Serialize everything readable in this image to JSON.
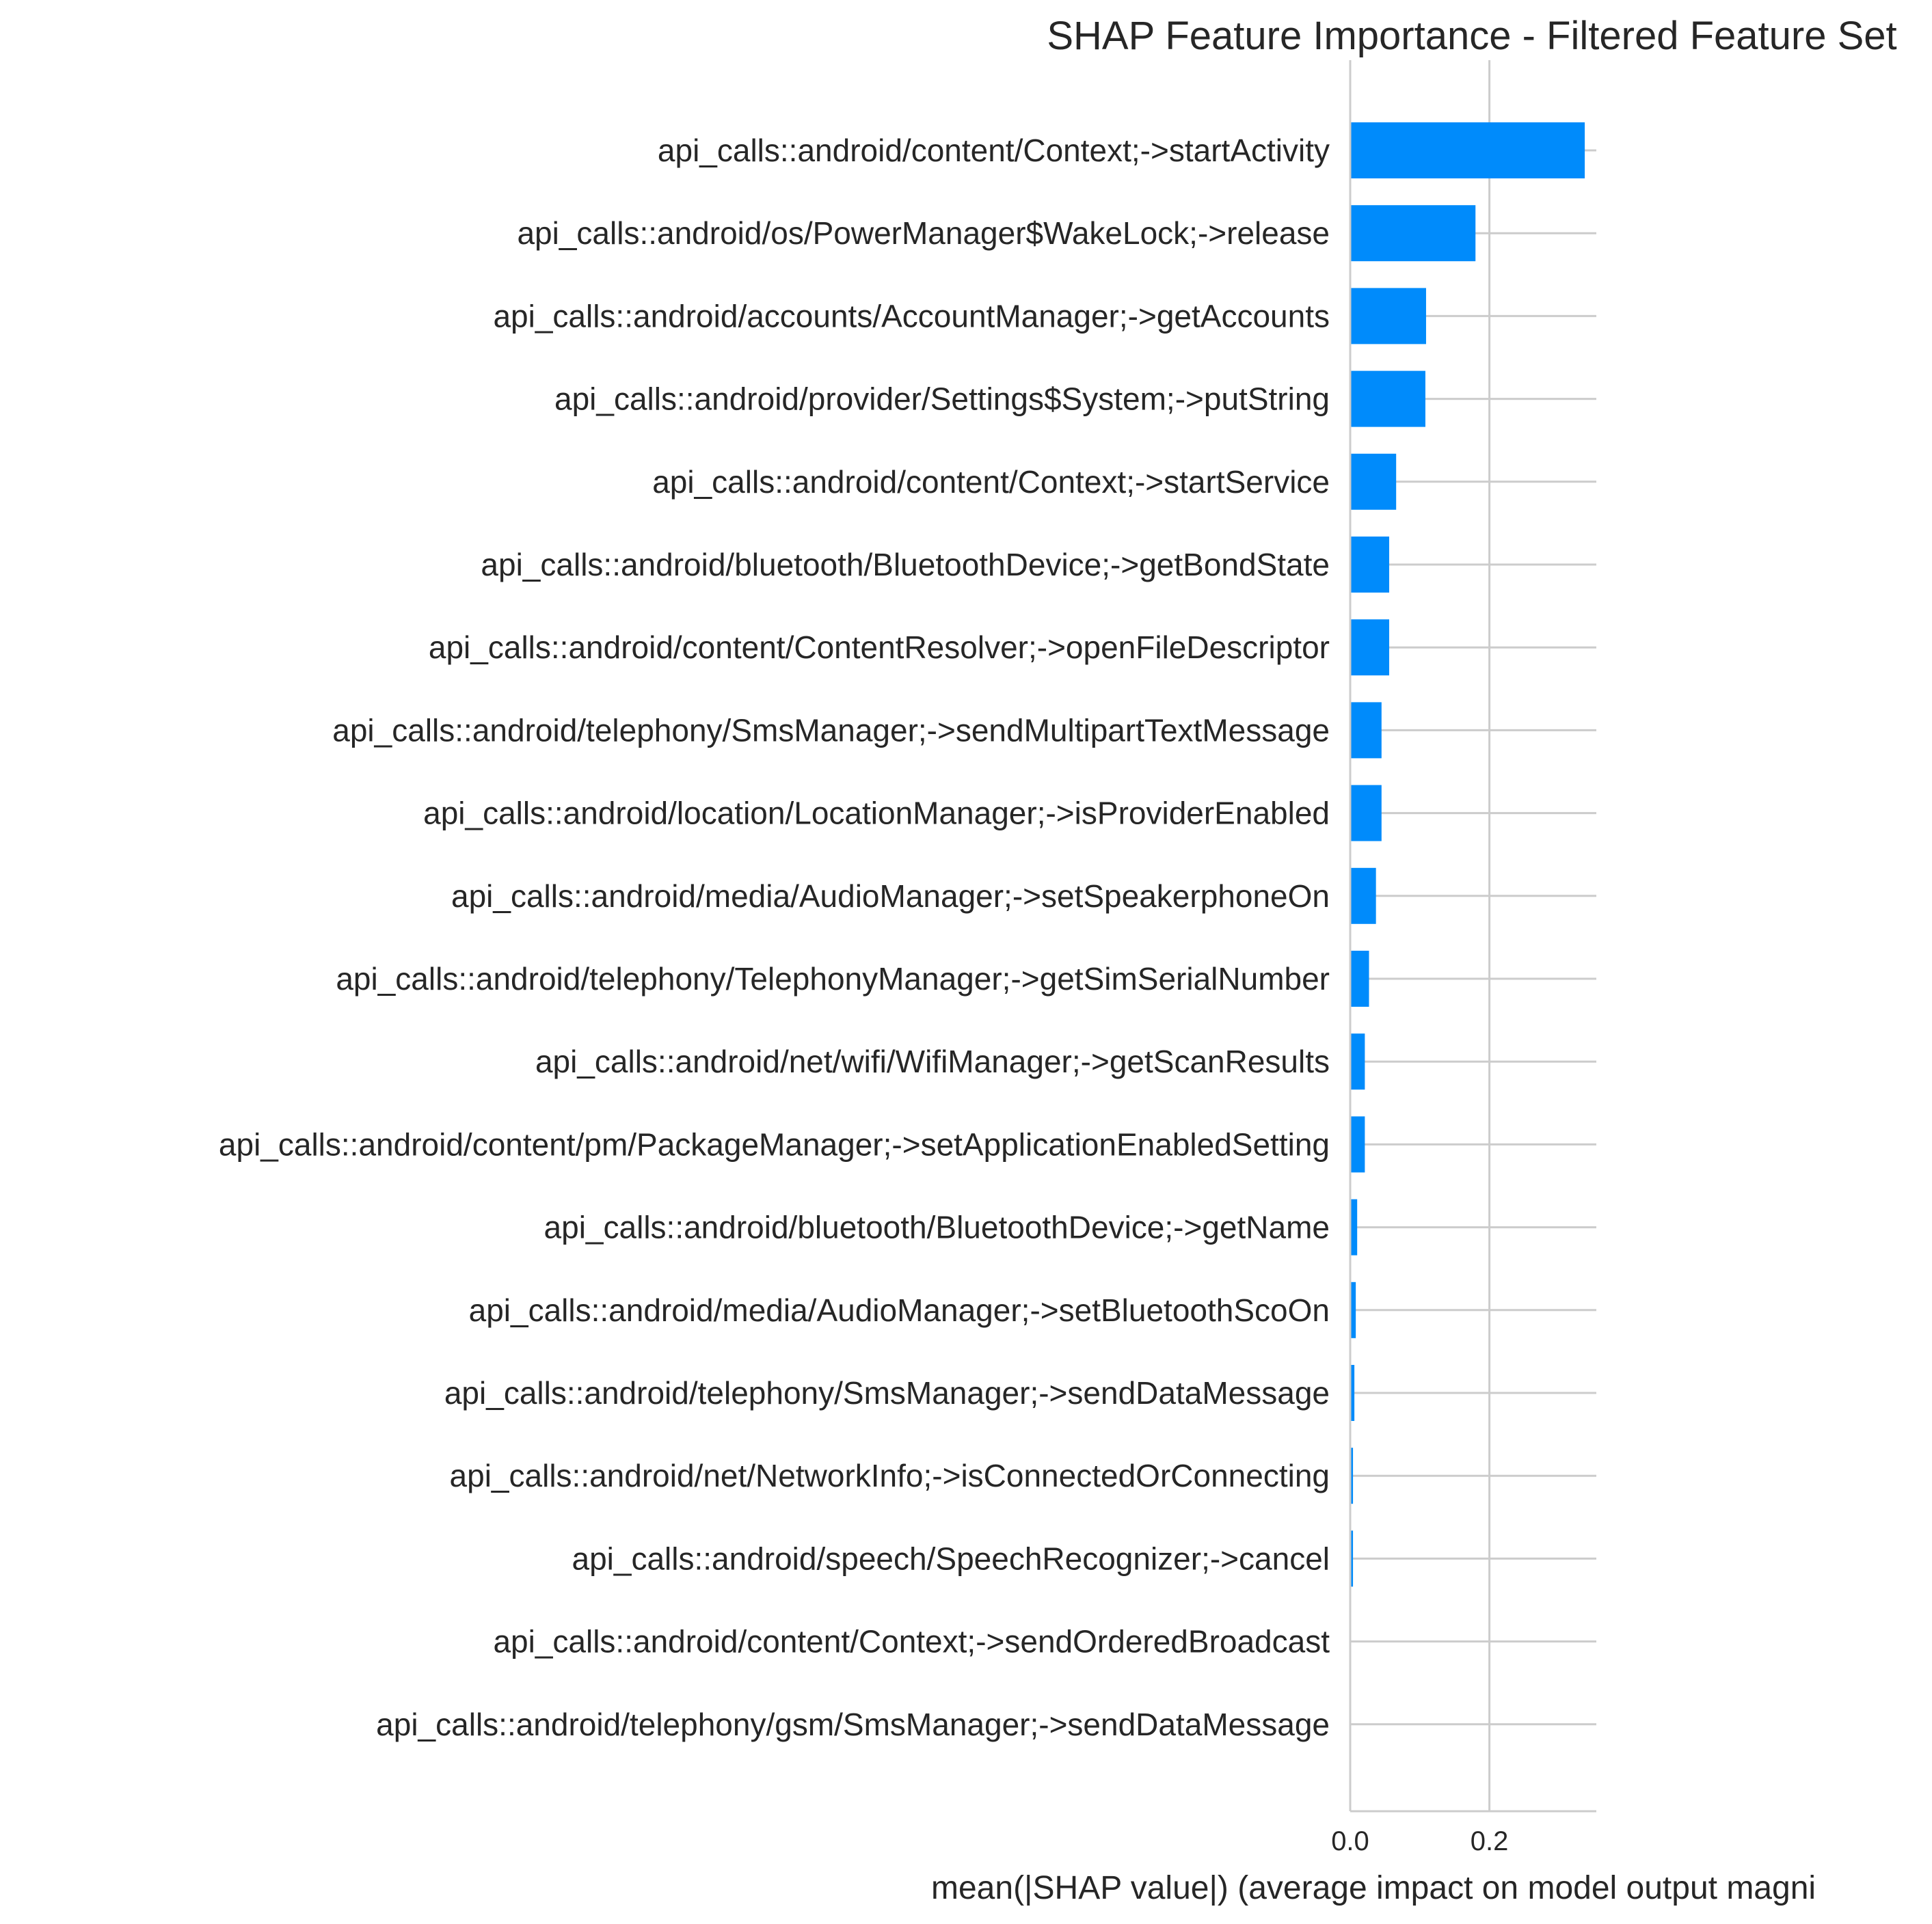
{
  "chart_data": {
    "type": "bar",
    "orientation": "horizontal",
    "title": "SHAP Feature Importance - Filtered Feature Set",
    "xlabel": "mean(|SHAP value|) (average impact on model output magni",
    "ylabel": "",
    "xlim": [
      0,
      0.355
    ],
    "xticks": [
      0.0,
      0.2
    ],
    "xtick_labels": [
      "0.0",
      "0.2"
    ],
    "grid": true,
    "bar_color": "#008bfb",
    "categories": [
      "api_calls::android/content/Context;->startActivity",
      "api_calls::android/os/PowerManager$WakeLock;->release",
      "api_calls::android/accounts/AccountManager;->getAccounts",
      "api_calls::android/provider/Settings$System;->putString",
      "api_calls::android/content/Context;->startService",
      "api_calls::android/bluetooth/BluetoothDevice;->getBondState",
      "api_calls::android/content/ContentResolver;->openFileDescriptor",
      "api_calls::android/telephony/SmsManager;->sendMultipartTextMessage",
      "api_calls::android/location/LocationManager;->isProviderEnabled",
      "api_calls::android/media/AudioManager;->setSpeakerphoneOn",
      "api_calls::android/telephony/TelephonyManager;->getSimSerialNumber",
      "api_calls::android/net/wifi/WifiManager;->getScanResults",
      "api_calls::android/content/pm/PackageManager;->setApplicationEnabledSetting",
      "api_calls::android/bluetooth/BluetoothDevice;->getName",
      "api_calls::android/media/AudioManager;->setBluetoothScoOn",
      "api_calls::android/telephony/SmsManager;->sendDataMessage",
      "api_calls::android/net/NetworkInfo;->isConnectedOrConnecting",
      "api_calls::android/speech/SpeechRecognizer;->cancel",
      "api_calls::android/content/Context;->sendOrderedBroadcast",
      "api_calls::android/telephony/gsm/SmsManager;->sendDataMessage"
    ],
    "values": [
      0.337,
      0.18,
      0.109,
      0.108,
      0.066,
      0.056,
      0.056,
      0.045,
      0.045,
      0.037,
      0.027,
      0.021,
      0.021,
      0.01,
      0.008,
      0.006,
      0.004,
      0.004,
      0.001,
      0.001
    ]
  }
}
